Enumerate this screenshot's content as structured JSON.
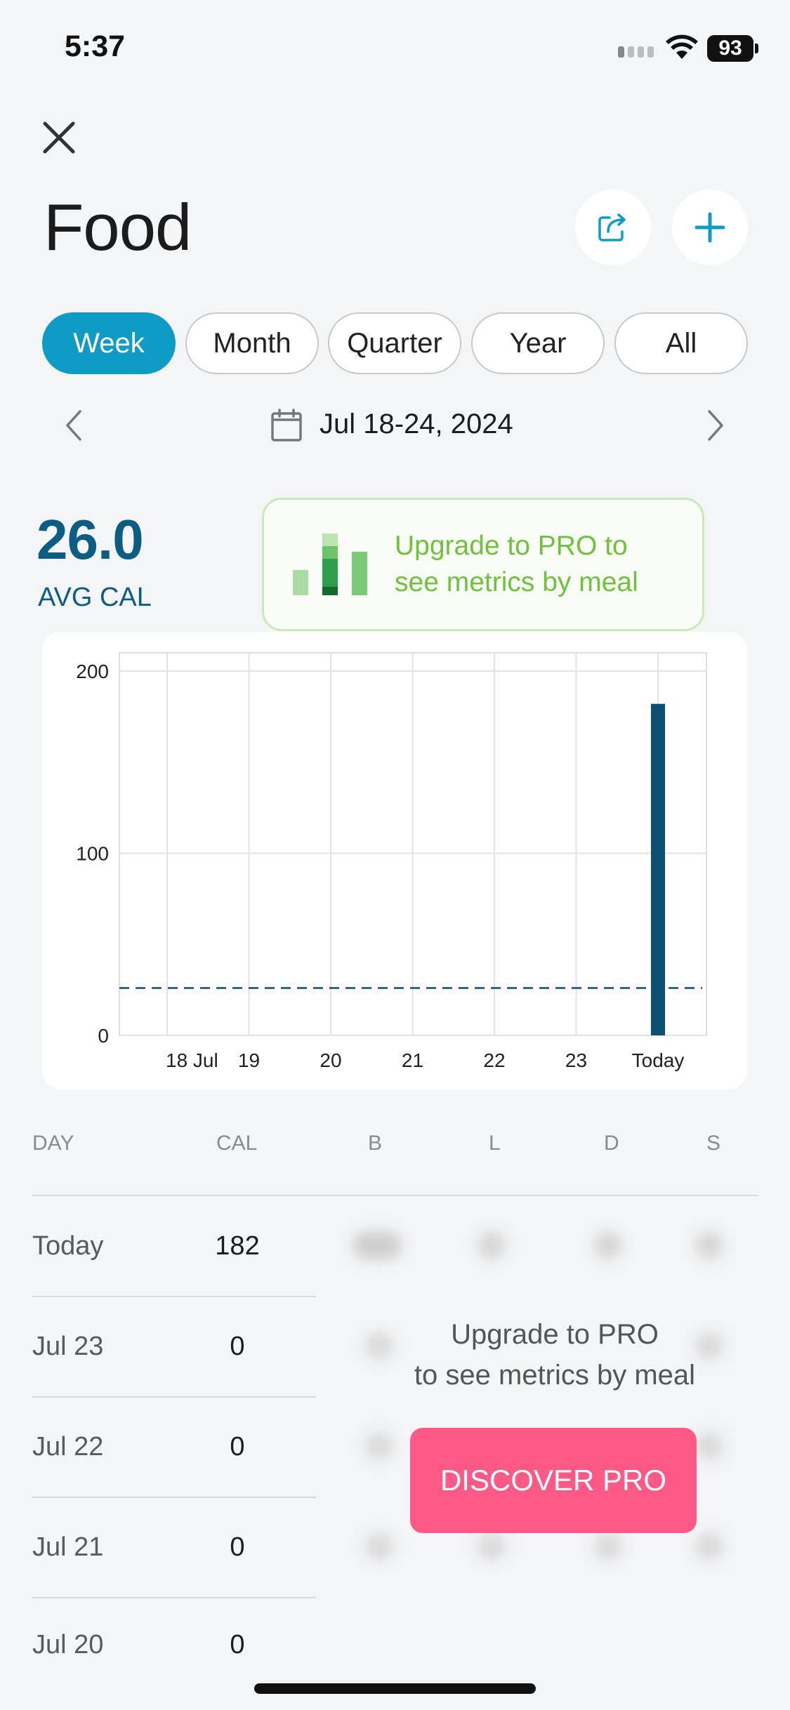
{
  "status_bar": {
    "time": "5:37",
    "battery": "93"
  },
  "header": {
    "title": "Food"
  },
  "tabs": [
    {
      "label": "Week",
      "active": true
    },
    {
      "label": "Month",
      "active": false
    },
    {
      "label": "Quarter",
      "active": false
    },
    {
      "label": "Year",
      "active": false
    },
    {
      "label": "All",
      "active": false
    }
  ],
  "date_range": "Jul 18-24, 2024",
  "summary": {
    "avg_value": "26.0",
    "avg_label": "AVG CAL"
  },
  "promo": {
    "text_line1": "Upgrade to PRO to",
    "text_line2": "see metrics by meal"
  },
  "chart_data": {
    "type": "bar",
    "categories": [
      "18 Jul",
      "19",
      "20",
      "21",
      "22",
      "23",
      "Today"
    ],
    "values": [
      0,
      0,
      0,
      0,
      0,
      0,
      182
    ],
    "ylim": [
      0,
      210
    ],
    "yticks": [
      "0",
      "100",
      "200"
    ],
    "average_line": 26.0,
    "bar_color": "#0b4f72",
    "grid": true
  },
  "table": {
    "headers": [
      "DAY",
      "CAL",
      "B",
      "L",
      "D",
      "S"
    ],
    "rows": [
      {
        "day": "Today",
        "cal": "182"
      },
      {
        "day": "Jul 23",
        "cal": "0"
      },
      {
        "day": "Jul 22",
        "cal": "0"
      },
      {
        "day": "Jul 21",
        "cal": "0"
      },
      {
        "day": "Jul 20",
        "cal": "0"
      }
    ]
  },
  "upgrade": {
    "line1": "Upgrade to PRO",
    "line2": "to see metrics by meal",
    "button": "DISCOVER PRO"
  },
  "colors": {
    "accent": "#0e9cc6",
    "primary_dark": "#0c5d84",
    "promo_green": "#6fc23c",
    "pro_pink": "#ff5a87"
  }
}
